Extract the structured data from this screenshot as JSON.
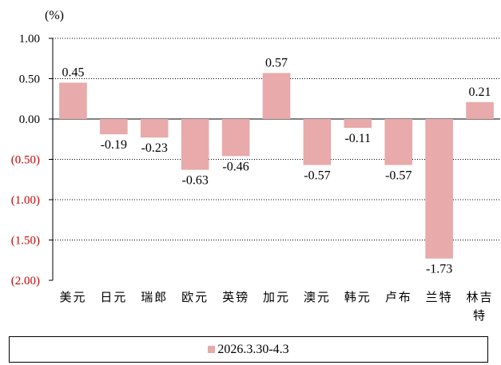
{
  "chart_data": {
    "type": "bar",
    "unit_label": "(%)",
    "categories": [
      "美元",
      "日元",
      "瑞郎",
      "欧元",
      "英镑",
      "加元",
      "澳元",
      "韩元",
      "卢布",
      "兰特",
      "林吉特"
    ],
    "series": [
      {
        "name": "2026.3.30-4.3",
        "values": [
          0.45,
          -0.19,
          -0.23,
          -0.63,
          -0.46,
          0.57,
          -0.57,
          -0.11,
          -0.57,
          -1.73,
          0.21
        ],
        "labels": [
          "0.45",
          "-0.19",
          "-0.23",
          "-0.63",
          "-0.46",
          "0.57",
          "-0.57",
          "-0.11",
          "-0.57",
          "-1.73",
          "0.21"
        ]
      }
    ],
    "ylim": [
      -2.0,
      1.0
    ],
    "yticks": [
      1.0,
      0.5,
      0.0,
      -0.5,
      -1.0,
      -1.5,
      -2.0
    ],
    "ytick_labels": [
      "1.00",
      "0.50",
      "0.00",
      "(0.50)",
      "(1.00)",
      "(1.50)",
      "(2.00)"
    ],
    "grid": "horizontal-dotted",
    "legend_position": "bottom",
    "colors": {
      "bar": "#e8aaaa",
      "positive_tick": "#000000",
      "negative_tick": "#cc0000",
      "axis": "#000000"
    }
  }
}
